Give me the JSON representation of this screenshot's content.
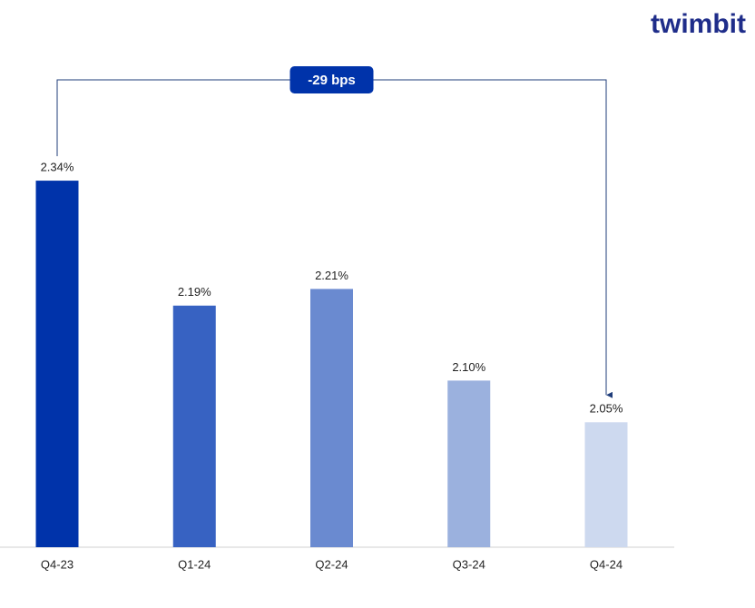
{
  "chart_data": {
    "type": "bar",
    "brand": "twimbit",
    "annotation": "-29 bps",
    "categories": [
      "Q4-23",
      "Q1-24",
      "Q2-24",
      "Q3-24",
      "Q4-24"
    ],
    "values": [
      2.34,
      2.19,
      2.21,
      2.1,
      2.05
    ],
    "value_labels": [
      "2.34%",
      "2.19%",
      "2.21%",
      "2.10%",
      "2.05%"
    ],
    "colors": [
      "#0033aa",
      "#3762c2",
      "#6a8ad0",
      "#9bb1de",
      "#cdd9ef"
    ],
    "ylim": [
      1.9,
      2.4
    ]
  }
}
